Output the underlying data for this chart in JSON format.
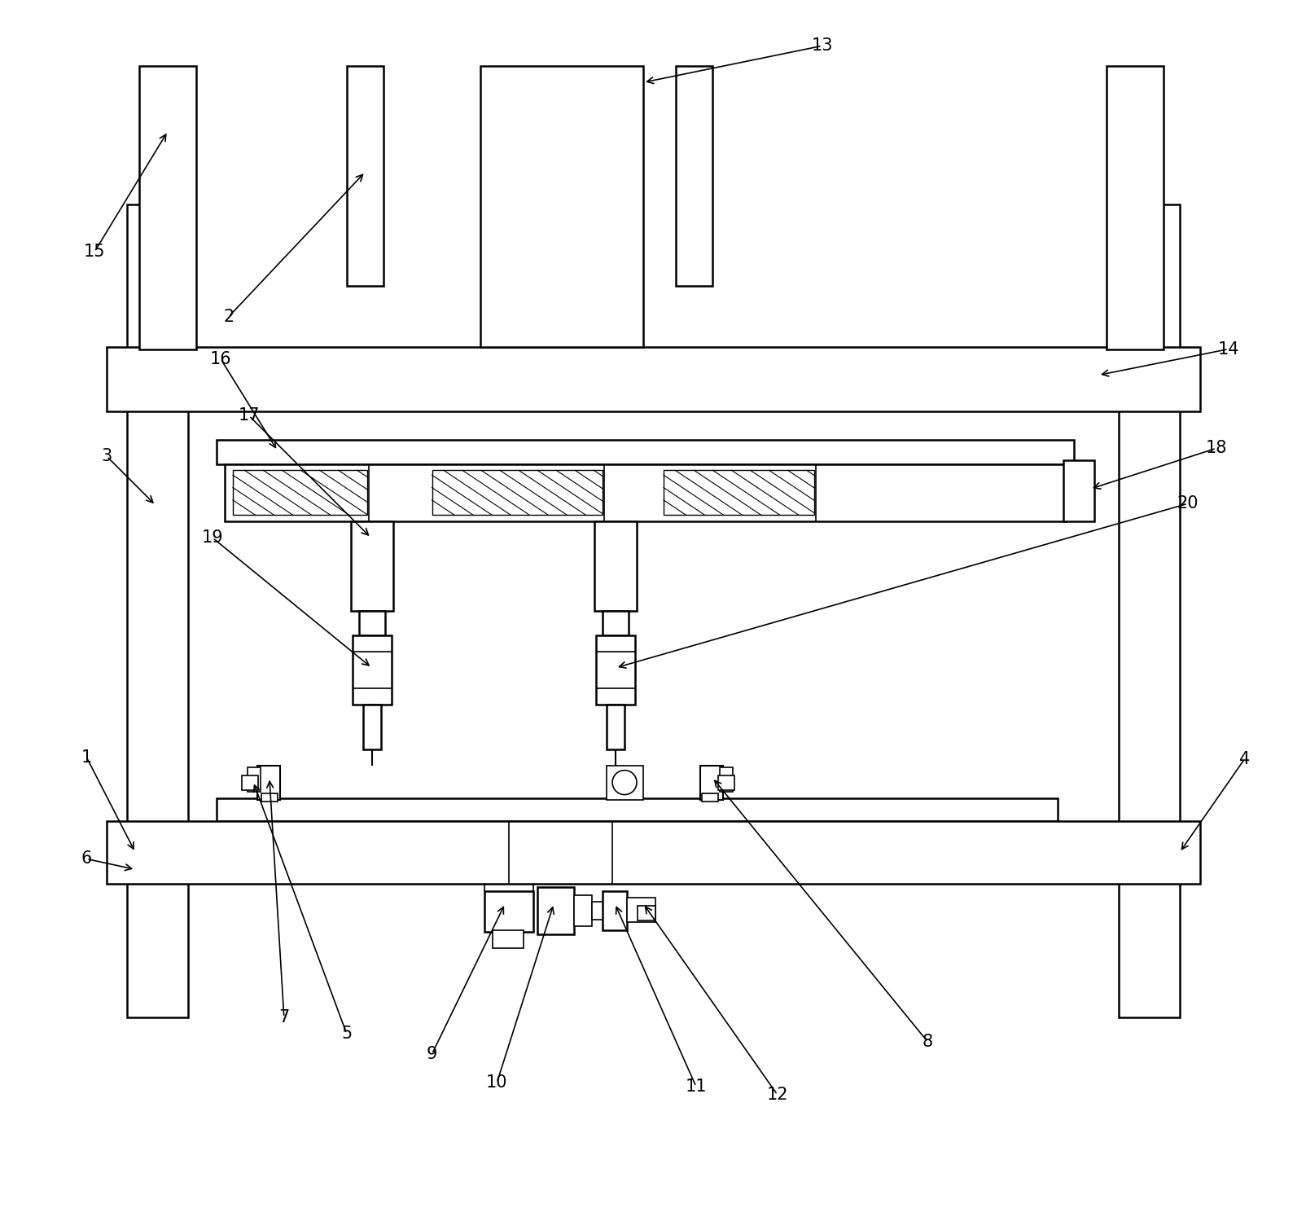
{
  "bg_color": "#ffffff",
  "line_color": "#000000",
  "line_width": 1.5,
  "figsize": [
    16.04,
    14.83
  ],
  "dpi": 100
}
